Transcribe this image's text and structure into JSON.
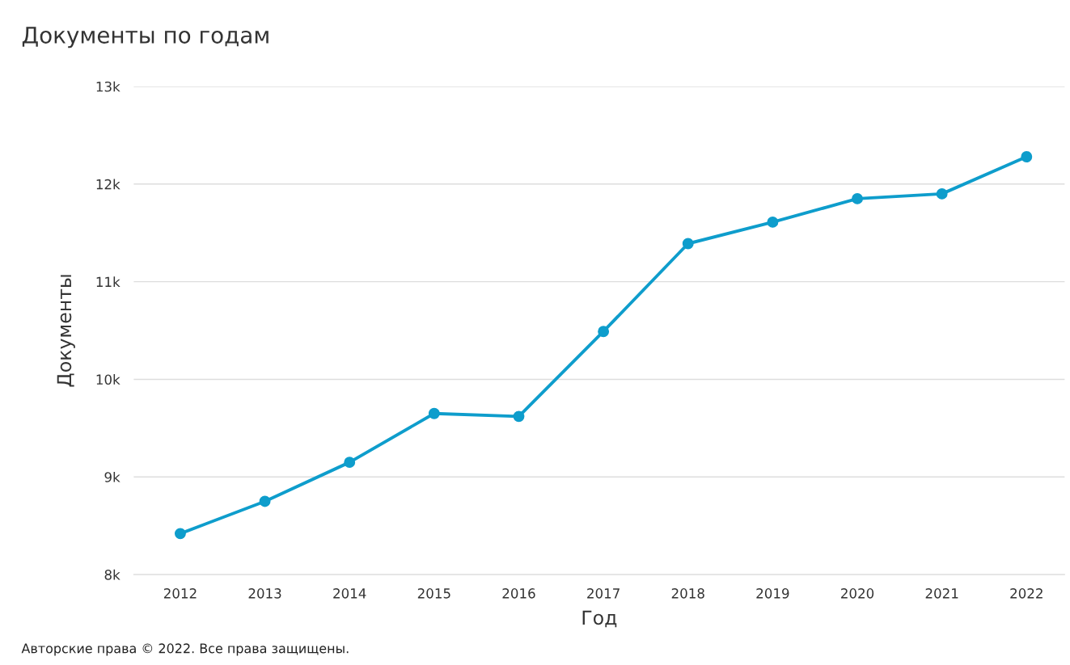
{
  "chart_data": {
    "type": "line",
    "title": "Документы по годам",
    "xlabel": "Год",
    "ylabel": "Документы",
    "categories": [
      "2012",
      "2013",
      "2014",
      "2015",
      "2016",
      "2017",
      "2018",
      "2019",
      "2020",
      "2021",
      "2022"
    ],
    "series": [
      {
        "color": "#0e9dcc",
        "values": [
          8420,
          8750,
          9150,
          9650,
          9620,
          10490,
          11390,
          11610,
          11850,
          11900,
          12280
        ]
      }
    ],
    "ylim": [
      8000,
      13000
    ],
    "yticks": [
      {
        "value": 8000,
        "label": "8k"
      },
      {
        "value": 9000,
        "label": "9k"
      },
      {
        "value": 10000,
        "label": "10k"
      },
      {
        "value": 11000,
        "label": "11k"
      },
      {
        "value": 12000,
        "label": "12k"
      },
      {
        "value": 13000,
        "label": "13k"
      }
    ],
    "grid": "y",
    "marker": "circle",
    "line_style": "solid",
    "annotations": [
      "Авторские права © 2022. Все права защищены."
    ]
  }
}
